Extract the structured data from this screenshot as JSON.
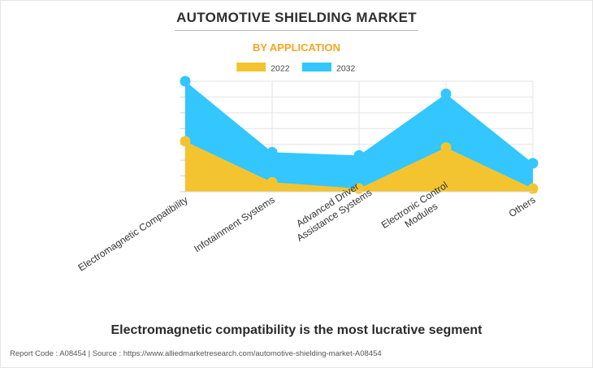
{
  "title": "AUTOMOTIVE SHIELDING MARKET",
  "subtitle": "BY APPLICATION",
  "headline": "Electromagnetic compatibility is the most lucrative segment",
  "footer": "Report Code : A08454  |  Source : https://www.alliedmarketresearch.com/automotive-shielding-market-A08454",
  "colors": {
    "series_2022": "#f4c430",
    "series_2032": "#33c6ff",
    "subtitle": "#f5a623"
  },
  "chart_data": {
    "type": "area",
    "categories": [
      [
        "Electromagnetic Compatibility"
      ],
      [
        "Infotainment Systems"
      ],
      [
        "Advanced Driver",
        "Assistance Systems"
      ],
      [
        "Electronic Control",
        "Modules"
      ],
      [
        "Others"
      ]
    ],
    "series": [
      {
        "name": "2022",
        "values": [
          3.2,
          0.6,
          0.2,
          2.8,
          0.2
        ]
      },
      {
        "name": "2032",
        "values": [
          7.0,
          2.5,
          2.3,
          6.2,
          1.8
        ]
      }
    ],
    "ylim": [
      0,
      7
    ],
    "grid": true,
    "legend": "top-center",
    "xlabel": "",
    "ylabel": ""
  }
}
